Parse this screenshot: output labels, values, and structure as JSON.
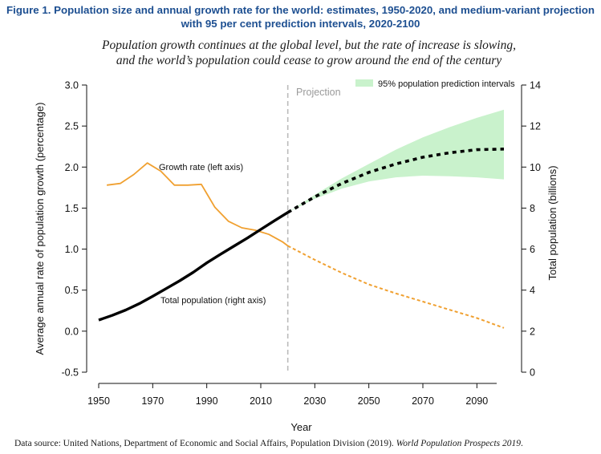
{
  "figure": {
    "title": "Figure 1. Population size and annual growth rate for the world: estimates, 1950-2020, and medium-variant projection with 95 per cent prediction intervals, 2020-2100",
    "subtitle_line1": "Population growth continues at the global level, but the rate of increase is slowing,",
    "subtitle_line2": "and the world’s population could cease to grow around the end of the century",
    "source_text": "Data source: United Nations, Department of Economic and Social Affairs, Population Division (2019). ",
    "source_italic": "World Population Prospects 2019",
    "source_end": "."
  },
  "colors": {
    "growth": "#f0a030",
    "population": "#000000",
    "interval_fill": "#c9f2cc",
    "projection_line": "#bbbbbb",
    "title": "#1d4f91"
  },
  "chart_data": {
    "type": "line",
    "xlabel": "Year",
    "ylabel_left": "Average annual rate of population growth (percentage)",
    "ylabel_right": "Total population (billions)",
    "xlim": [
      1950,
      2100
    ],
    "ylim_left": [
      -0.5,
      3.0
    ],
    "ylim_right": [
      0,
      14
    ],
    "x_ticks": [
      "1950",
      "1970",
      "1990",
      "2010",
      "2030",
      "2050",
      "2070",
      "2090"
    ],
    "left_ticks": [
      "-0.5",
      "0.0",
      "0.5",
      "1.0",
      "1.5",
      "2.0",
      "2.5",
      "3.0"
    ],
    "right_ticks": [
      "0",
      "2",
      "4",
      "6",
      "8",
      "10",
      "12",
      "14"
    ],
    "projection_start": 2020,
    "projection_label": "Projection",
    "legend": {
      "label": "95% population prediction intervals",
      "position": "top-right"
    },
    "annotations": {
      "growth": "Growth rate (left axis)",
      "population": "Total population (right axis)"
    },
    "series": [
      {
        "name": "Growth rate (left axis)",
        "axis": "left",
        "style": "solid",
        "x": [
          1953,
          1958,
          1963,
          1968,
          1973,
          1978,
          1983,
          1988,
          1993,
          1998,
          2003,
          2008,
          2013,
          2018,
          2020
        ],
        "values": [
          1.78,
          1.8,
          1.91,
          2.05,
          1.95,
          1.78,
          1.78,
          1.79,
          1.51,
          1.34,
          1.26,
          1.23,
          1.18,
          1.09,
          1.04
        ]
      },
      {
        "name": "Growth rate projection",
        "axis": "left",
        "style": "dashed",
        "x": [
          2020,
          2030,
          2040,
          2050,
          2060,
          2070,
          2080,
          2090,
          2100
        ],
        "values": [
          1.04,
          0.87,
          0.71,
          0.57,
          0.46,
          0.36,
          0.26,
          0.16,
          0.04
        ]
      },
      {
        "name": "Total population (right axis)",
        "axis": "right",
        "style": "solid",
        "x": [
          1950,
          1955,
          1960,
          1965,
          1970,
          1975,
          1980,
          1985,
          1990,
          1995,
          2000,
          2005,
          2010,
          2015,
          2020
        ],
        "values": [
          2.54,
          2.77,
          3.03,
          3.34,
          3.7,
          4.08,
          4.46,
          4.87,
          5.33,
          5.74,
          6.14,
          6.54,
          6.96,
          7.38,
          7.79
        ]
      },
      {
        "name": "Total population projection",
        "axis": "right",
        "style": "dashed",
        "x": [
          2020,
          2030,
          2040,
          2050,
          2060,
          2070,
          2080,
          2090,
          2100
        ],
        "values": [
          7.79,
          8.55,
          9.2,
          9.74,
          10.15,
          10.48,
          10.7,
          10.85,
          10.88
        ]
      }
    ],
    "interval": {
      "name": "95% population prediction intervals",
      "axis": "right",
      "x": [
        2020,
        2030,
        2040,
        2050,
        2060,
        2070,
        2080,
        2090,
        2100
      ],
      "lower": [
        7.79,
        8.45,
        8.95,
        9.3,
        9.5,
        9.58,
        9.55,
        9.5,
        9.4
      ],
      "upper": [
        7.79,
        8.65,
        9.45,
        10.15,
        10.85,
        11.45,
        11.95,
        12.4,
        12.8
      ]
    }
  }
}
